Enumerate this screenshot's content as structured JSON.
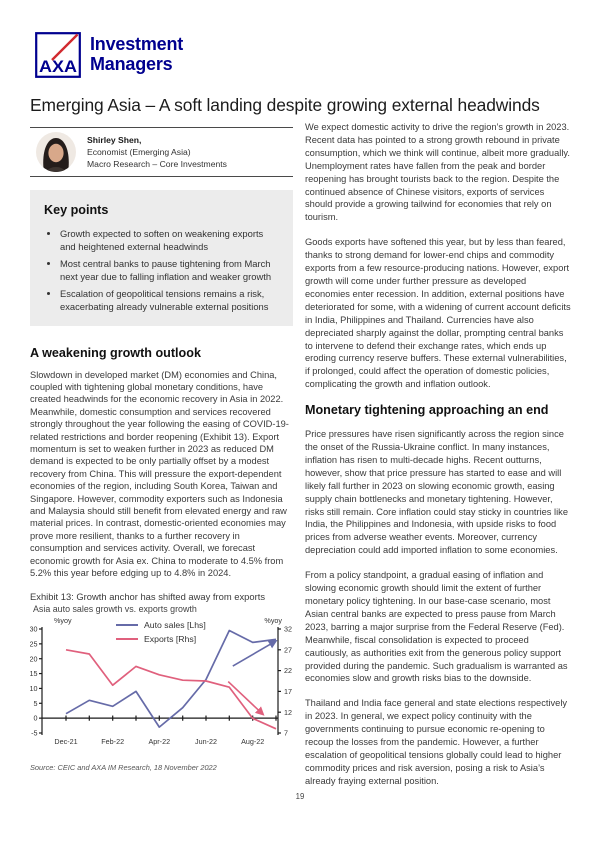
{
  "page": {
    "number": "19"
  },
  "header": {
    "logo": {
      "brand": "AXA",
      "line1": "Investment",
      "line2": "Managers",
      "navy": "#00008F",
      "red": "#D12A2F"
    },
    "title": "Emerging Asia – A soft landing despite growing external headwinds"
  },
  "author": {
    "name": "Shirley Shen,",
    "role": "Economist (Emerging Asia)",
    "team": "Macro Research – Core Investments"
  },
  "key_points": {
    "heading": "Key points",
    "bullets": [
      "Growth expected to soften on weakening exports and heightened external headwinds",
      "Most central banks to pause tightening from March next year due to falling inflation and weaker growth",
      "Escalation of geopolitical tensions remains a risk, exacerbating already vulnerable external positions"
    ]
  },
  "left_column": {
    "section_heading": "A weakening growth outlook",
    "paragraph": "Slowdown in developed market (DM) economies and China, coupled with tightening global monetary conditions, have created headwinds for the economic recovery in Asia in 2022. Meanwhile, domestic consumption and services recovered strongly throughout the year following the easing of COVID-19-related restrictions and border reopening (Exhibit 13). Export momentum is set to weaken further in 2023 as reduced DM demand is expected to be only partially offset by a modest recovery from China. This will pressure the export-dependent economies of the region, including South Korea, Taiwan and Singapore. However, commodity exporters such as Indonesia and Malaysia should still benefit from elevated energy and raw material prices. In contrast, domestic-oriented economies may prove more resilient, thanks to a further recovery in consumption and services activity. Overall, we forecast economic growth for Asia ex. China to moderate to 4.5% from 5.2% this year before edging up to 4.8% in 2024.",
    "exhibit": {
      "caption": "Exhibit 13: Growth anchor has shifted away from exports",
      "subtitle": "Asia auto sales growth vs. exports growth",
      "source": "Source: CEIC and AXA IM Research, 18 November 2022"
    }
  },
  "right_column": {
    "paragraphs": [
      "We expect domestic activity to drive the region’s growth in 2023. Recent data has pointed to a strong growth rebound in private consumption, which we think will continue, albeit more gradually. Unemployment rates have fallen from the peak and border reopening has brought tourists back to the region. Despite the continued absence of Chinese visitors, exports of services should provide a growing tailwind for economies that rely on tourism.",
      "Goods exports have softened this year, but by less than feared, thanks to strong demand for lower-end chips and commodity exports from a few resource-producing nations. However, export growth will come under further pressure as developed economies enter recession. In addition, external positions have deteriorated for some, with a widening of current account deficits in India, Philippines and Thailand. Currencies have also depreciated sharply against the dollar, prompting central banks to intervene to defend their exchange rates, which ends up eroding currency reserve buffers. These external vulnerabilities, if prolonged, could affect the operation of domestic policies, complicating the growth and inflation outlook."
    ],
    "section_heading": "Monetary tightening approaching an end",
    "paragraphs2": [
      "Price pressures have risen significantly across the region since the onset of the Russia-Ukraine conflict. In many instances, inflation has risen to multi-decade highs. Recent outturns, however, show that price pressure has started to ease and will likely fall further in 2023 on slowing economic growth, easing supply chain bottlenecks and monetary tightening. However, risks still remain. Core inflation could stay sticky in countries like India, the Philippines and Indonesia, with upside risks to food prices from adverse weather events. Moreover, currency depreciation could add imported inflation to some economies.",
      "From a policy standpoint, a gradual easing of inflation and slowing economic growth should limit the extent of further monetary policy tightening. In our base-case scenario, most Asian central banks are expected to press pause from March 2023, barring a major surprise from the Federal Reserve (Fed). Meanwhile, fiscal consolidation is expected to proceed cautiously, as authorities exit from the generous policy support provided during the pandemic. Such gradualism is warranted as economies slow and growth risks bias to the downside.",
      "Thailand and India face general and state elections respectively in 2023. In general, we expect policy continuity with the governments continuing to pursue economic re-opening to recoup the losses from the pandemic. However, a further escalation of geopolitical tensions globally could lead to higher commodity prices and risk aversion, posing a risk to Asia’s already fraying external position."
    ]
  },
  "chart_data": {
    "type": "line",
    "title": "Exhibit 13: Growth anchor has shifted away from exports",
    "subtitle": "Asia auto sales growth vs. exports growth",
    "x": [
      "Dec-21",
      "Jan-22",
      "Feb-22",
      "Mar-22",
      "Apr-22",
      "May-22",
      "Jun-22",
      "Jul-22",
      "Aug-22",
      "Sep-22"
    ],
    "x_tick_labels": [
      "Dec-21",
      "Feb-22",
      "Apr-22",
      "Jun-22",
      "Aug-22"
    ],
    "left_axis": {
      "label": "%yoy",
      "min": -5,
      "max": 30,
      "step": 5,
      "ticks": [
        30,
        25,
        20,
        15,
        10,
        5,
        0,
        -5
      ]
    },
    "right_axis": {
      "label": "%yoy",
      "min": 7,
      "max": 32,
      "step": 5,
      "ticks": [
        32,
        27,
        22,
        17,
        12,
        7
      ]
    },
    "grid": false,
    "legend_position": "top-center",
    "series": [
      {
        "name": "Auto sales [Lhs]",
        "axis": "left",
        "color": "#666BA8",
        "values": [
          1.5,
          6,
          4,
          9,
          -3,
          3.5,
          13,
          29.5,
          25.5,
          26.5
        ]
      },
      {
        "name": "Exports [Rhs]",
        "axis": "right",
        "color": "#E0607D",
        "values": [
          27,
          26,
          18.5,
          23,
          21,
          19.7,
          19.5,
          18,
          10.5,
          8
        ]
      }
    ],
    "annotations": [
      {
        "type": "arrow",
        "color": "#666BA8",
        "from": [
          7.15,
          17.5
        ],
        "to": [
          9.0,
          26.0
        ]
      },
      {
        "type": "arrow",
        "color": "#E0607D",
        "from": [
          6.95,
          12.3
        ],
        "to": [
          8.45,
          1.2
        ]
      }
    ]
  }
}
